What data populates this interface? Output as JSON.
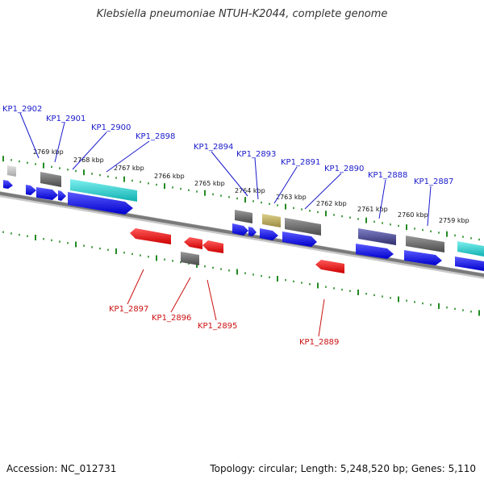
{
  "header": {
    "title": "Klebsiella pneumoniae NTUH-K2044, complete genome"
  },
  "footer": {
    "accession": "Accession: NC_012731",
    "summary": "Topology: circular; Length: 5,248,520 bp; Genes: 5,110"
  },
  "ruler": [
    "2769 kbp",
    "2768 kbp",
    "2767 kbp",
    "2766 kbp",
    "2765 kbp",
    "2764 kbp",
    "2763 kbp",
    "2762 kbp",
    "2761 kbp",
    "2760 kbp",
    "2759 kbp"
  ],
  "labels_top": [
    "KP1_2902",
    "KP1_2901",
    "KP1_2900",
    "KP1_2898",
    "KP1_2894",
    "KP1_2893",
    "KP1_2891",
    "KP1_2890",
    "KP1_2888",
    "KP1_2887"
  ],
  "labels_bottom": [
    "KP1_2897",
    "KP1_2896",
    "KP1_2895",
    "KP1_2889"
  ],
  "colors": {
    "forward": "#1010ee",
    "reverse": "#ee1111",
    "gray": "#606060",
    "cyan": "#19c9c9",
    "olive": "#b8a860",
    "navy": "#4a4a90",
    "tick": "#228b22",
    "backbone": "#808080"
  }
}
